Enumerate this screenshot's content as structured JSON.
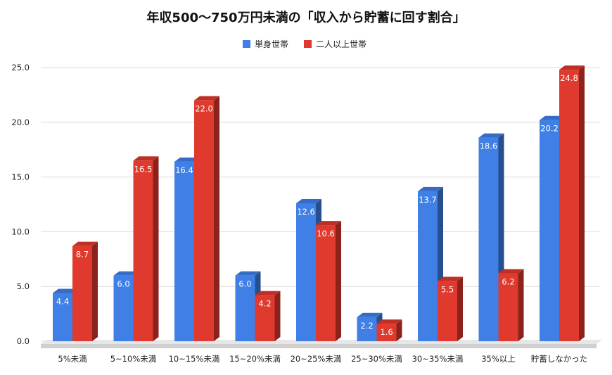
{
  "chart_data": {
    "type": "bar",
    "title": "年収500〜750万円未満の「収入から貯蓄に回す割合」",
    "categories": [
      "5%未満",
      "5~10%未満",
      "10~15%未満",
      "15~20%未満",
      "20~25%未満",
      "25~30%未満",
      "30~35%未満",
      "35%以上",
      "貯蓄しなかった"
    ],
    "series": [
      {
        "name": "単身世帯",
        "color": "#3f7fe6",
        "values": [
          4.4,
          6.0,
          16.4,
          6.0,
          12.6,
          2.2,
          13.7,
          18.6,
          20.2
        ],
        "labels": [
          "4.4",
          "6.0",
          "16.4",
          "6.0",
          "12.6",
          "2.2",
          "13.7",
          "18.6",
          "20.2"
        ]
      },
      {
        "name": "二人以上世帯",
        "color": "#e0392d",
        "values": [
          8.7,
          16.5,
          22.0,
          4.2,
          10.6,
          1.6,
          5.5,
          6.2,
          24.8
        ],
        "labels": [
          "8.7",
          "16.5",
          "22.0",
          "4.2",
          "10.6",
          "1.6",
          "5.5",
          "6.2",
          "24.8"
        ]
      }
    ],
    "y_ticks": [
      "0.0",
      "5.0",
      "10.0",
      "15.0",
      "20.0",
      "25.0"
    ],
    "ylim": [
      0,
      25
    ],
    "grid": true,
    "legend_position": "top-center",
    "style": "3d-bars"
  }
}
